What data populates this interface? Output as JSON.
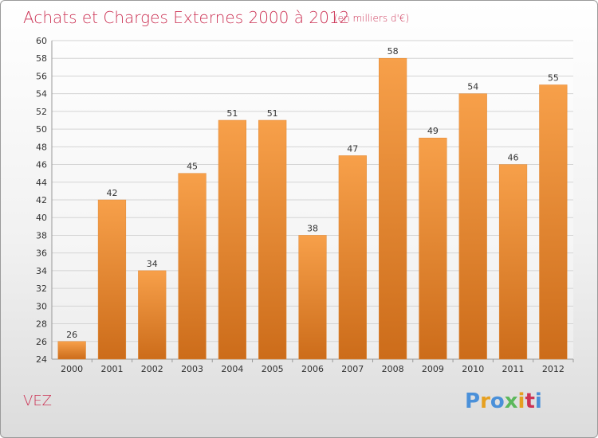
{
  "title": "Achats et Charges Externes 2000 à 2012",
  "subtitle": "(en milliers d'€)",
  "commune": "VEZ",
  "brand": {
    "letters": [
      "P",
      "r",
      "o",
      "x",
      "i",
      "t",
      "i"
    ],
    "colors": [
      "#4a90d9",
      "#e6a020",
      "#4a90d9",
      "#5cb85c",
      "#e6a020",
      "#cc3355",
      "#4a90d9"
    ]
  },
  "colors": {
    "bar_top": "#f7a04a",
    "bar_bottom": "#cc6c1a",
    "title": "#cc3355",
    "grid": "#d4d4d4"
  },
  "chart_data": {
    "type": "bar",
    "categories": [
      "2000",
      "2001",
      "2002",
      "2003",
      "2004",
      "2005",
      "2006",
      "2007",
      "2008",
      "2009",
      "2010",
      "2011",
      "2012"
    ],
    "values": [
      26,
      42,
      34,
      45,
      51,
      51,
      38,
      47,
      58,
      49,
      54,
      46,
      55
    ],
    "title": "Achats et Charges Externes 2000 à 2012",
    "xlabel": "",
    "ylabel": "",
    "ylim": [
      24,
      60
    ],
    "yticks": [
      24,
      26,
      28,
      30,
      32,
      34,
      36,
      38,
      40,
      42,
      44,
      46,
      48,
      50,
      52,
      54,
      56,
      58,
      60
    ],
    "grid": true,
    "data_labels": true
  }
}
